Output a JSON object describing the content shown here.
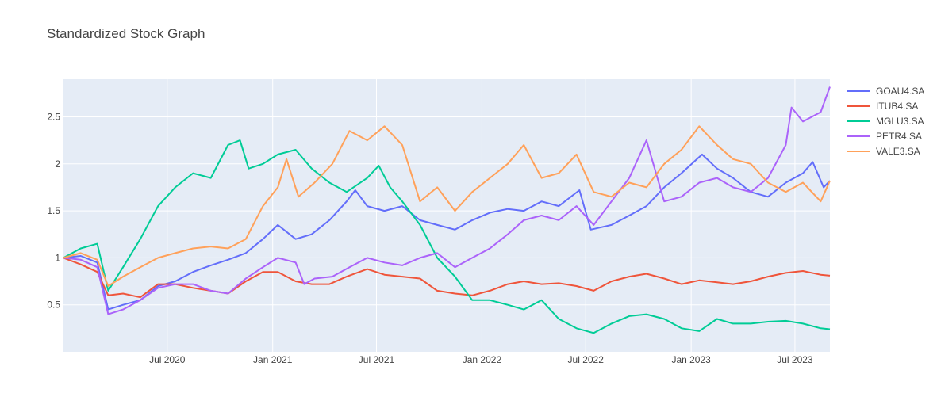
{
  "chart_data": {
    "type": "line",
    "title": "Standardized Stock Graph",
    "xlabel": "",
    "ylabel": "",
    "x_range": [
      "2020-01-02",
      "2023-08-31"
    ],
    "ylim": [
      0.0,
      2.9
    ],
    "x_ticks": [
      {
        "date": "2020-07-01",
        "label": "Jul 2020"
      },
      {
        "date": "2021-01-01",
        "label": "Jan 2021"
      },
      {
        "date": "2021-07-01",
        "label": "Jul 2021"
      },
      {
        "date": "2022-01-01",
        "label": "Jan 2022"
      },
      {
        "date": "2022-07-01",
        "label": "Jul 2022"
      },
      {
        "date": "2023-01-01",
        "label": "Jan 2023"
      },
      {
        "date": "2023-07-01",
        "label": "Jul 2023"
      }
    ],
    "y_ticks": [
      {
        "value": 0.5,
        "label": "0.5"
      },
      {
        "value": 1.0,
        "label": "1"
      },
      {
        "value": 1.5,
        "label": "1.5"
      },
      {
        "value": 2.0,
        "label": "2"
      },
      {
        "value": 2.5,
        "label": "2.5"
      }
    ],
    "grid": true,
    "legend_position": "right",
    "plot_background": "#e5ecf6",
    "series": [
      {
        "name": "GOAU4.SA",
        "color": "#636efa",
        "points": [
          [
            "2020-01-02",
            1.0
          ],
          [
            "2020-02-01",
            1.02
          ],
          [
            "2020-03-01",
            0.95
          ],
          [
            "2020-03-20",
            0.45
          ],
          [
            "2020-04-15",
            0.5
          ],
          [
            "2020-05-15",
            0.55
          ],
          [
            "2020-06-15",
            0.7
          ],
          [
            "2020-07-15",
            0.75
          ],
          [
            "2020-08-15",
            0.85
          ],
          [
            "2020-09-15",
            0.92
          ],
          [
            "2020-10-15",
            0.98
          ],
          [
            "2020-11-15",
            1.05
          ],
          [
            "2020-12-15",
            1.2
          ],
          [
            "2021-01-10",
            1.35
          ],
          [
            "2021-02-10",
            1.2
          ],
          [
            "2021-03-10",
            1.25
          ],
          [
            "2021-04-10",
            1.4
          ],
          [
            "2021-05-10",
            1.6
          ],
          [
            "2021-05-25",
            1.72
          ],
          [
            "2021-06-15",
            1.55
          ],
          [
            "2021-07-15",
            1.5
          ],
          [
            "2021-08-15",
            1.55
          ],
          [
            "2021-09-15",
            1.4
          ],
          [
            "2021-10-15",
            1.35
          ],
          [
            "2021-11-15",
            1.3
          ],
          [
            "2021-12-15",
            1.4
          ],
          [
            "2022-01-15",
            1.48
          ],
          [
            "2022-02-15",
            1.52
          ],
          [
            "2022-03-15",
            1.5
          ],
          [
            "2022-04-15",
            1.6
          ],
          [
            "2022-05-15",
            1.55
          ],
          [
            "2022-06-20",
            1.72
          ],
          [
            "2022-07-10",
            1.3
          ],
          [
            "2022-08-15",
            1.35
          ],
          [
            "2022-09-15",
            1.45
          ],
          [
            "2022-10-15",
            1.55
          ],
          [
            "2022-11-15",
            1.75
          ],
          [
            "2022-12-15",
            1.9
          ],
          [
            "2023-01-20",
            2.1
          ],
          [
            "2023-02-15",
            1.95
          ],
          [
            "2023-03-15",
            1.85
          ],
          [
            "2023-04-15",
            1.7
          ],
          [
            "2023-05-15",
            1.65
          ],
          [
            "2023-06-15",
            1.8
          ],
          [
            "2023-07-15",
            1.9
          ],
          [
            "2023-08-01",
            2.02
          ],
          [
            "2023-08-20",
            1.75
          ],
          [
            "2023-08-31",
            1.82
          ]
        ]
      },
      {
        "name": "ITUB4.SA",
        "color": "#ef553b",
        "points": [
          [
            "2020-01-02",
            1.0
          ],
          [
            "2020-02-01",
            0.93
          ],
          [
            "2020-03-01",
            0.85
          ],
          [
            "2020-03-20",
            0.6
          ],
          [
            "2020-04-15",
            0.62
          ],
          [
            "2020-05-15",
            0.58
          ],
          [
            "2020-06-15",
            0.72
          ],
          [
            "2020-07-15",
            0.72
          ],
          [
            "2020-08-15",
            0.68
          ],
          [
            "2020-09-15",
            0.65
          ],
          [
            "2020-10-15",
            0.62
          ],
          [
            "2020-11-15",
            0.75
          ],
          [
            "2020-12-15",
            0.85
          ],
          [
            "2021-01-10",
            0.85
          ],
          [
            "2021-02-10",
            0.75
          ],
          [
            "2021-03-10",
            0.72
          ],
          [
            "2021-04-10",
            0.72
          ],
          [
            "2021-05-10",
            0.8
          ],
          [
            "2021-06-15",
            0.88
          ],
          [
            "2021-07-15",
            0.82
          ],
          [
            "2021-08-15",
            0.8
          ],
          [
            "2021-09-15",
            0.78
          ],
          [
            "2021-10-15",
            0.65
          ],
          [
            "2021-11-15",
            0.62
          ],
          [
            "2021-12-15",
            0.6
          ],
          [
            "2022-01-15",
            0.65
          ],
          [
            "2022-02-15",
            0.72
          ],
          [
            "2022-03-15",
            0.75
          ],
          [
            "2022-04-15",
            0.72
          ],
          [
            "2022-05-15",
            0.73
          ],
          [
            "2022-06-15",
            0.7
          ],
          [
            "2022-07-15",
            0.65
          ],
          [
            "2022-08-15",
            0.75
          ],
          [
            "2022-09-15",
            0.8
          ],
          [
            "2022-10-15",
            0.83
          ],
          [
            "2022-11-15",
            0.78
          ],
          [
            "2022-12-15",
            0.72
          ],
          [
            "2023-01-15",
            0.76
          ],
          [
            "2023-02-15",
            0.74
          ],
          [
            "2023-03-15",
            0.72
          ],
          [
            "2023-04-15",
            0.75
          ],
          [
            "2023-05-15",
            0.8
          ],
          [
            "2023-06-15",
            0.84
          ],
          [
            "2023-07-15",
            0.86
          ],
          [
            "2023-08-15",
            0.82
          ],
          [
            "2023-08-31",
            0.81
          ]
        ]
      },
      {
        "name": "MGLU3.SA",
        "color": "#00cc96",
        "points": [
          [
            "2020-01-02",
            1.0
          ],
          [
            "2020-02-01",
            1.1
          ],
          [
            "2020-03-01",
            1.15
          ],
          [
            "2020-03-20",
            0.65
          ],
          [
            "2020-04-15",
            0.9
          ],
          [
            "2020-05-15",
            1.2
          ],
          [
            "2020-06-15",
            1.55
          ],
          [
            "2020-07-15",
            1.75
          ],
          [
            "2020-08-15",
            1.9
          ],
          [
            "2020-09-15",
            1.85
          ],
          [
            "2020-10-15",
            2.2
          ],
          [
            "2020-11-05",
            2.25
          ],
          [
            "2020-11-20",
            1.95
          ],
          [
            "2020-12-15",
            2.0
          ],
          [
            "2021-01-10",
            2.1
          ],
          [
            "2021-02-10",
            2.15
          ],
          [
            "2021-03-10",
            1.95
          ],
          [
            "2021-04-10",
            1.8
          ],
          [
            "2021-05-10",
            1.7
          ],
          [
            "2021-06-15",
            1.85
          ],
          [
            "2021-07-05",
            1.98
          ],
          [
            "2021-07-25",
            1.75
          ],
          [
            "2021-08-15",
            1.6
          ],
          [
            "2021-09-15",
            1.35
          ],
          [
            "2021-10-15",
            1.0
          ],
          [
            "2021-11-15",
            0.8
          ],
          [
            "2021-12-15",
            0.55
          ],
          [
            "2022-01-15",
            0.55
          ],
          [
            "2022-02-15",
            0.5
          ],
          [
            "2022-03-15",
            0.45
          ],
          [
            "2022-04-15",
            0.55
          ],
          [
            "2022-05-15",
            0.35
          ],
          [
            "2022-06-15",
            0.25
          ],
          [
            "2022-07-15",
            0.2
          ],
          [
            "2022-08-15",
            0.3
          ],
          [
            "2022-09-15",
            0.38
          ],
          [
            "2022-10-15",
            0.4
          ],
          [
            "2022-11-15",
            0.35
          ],
          [
            "2022-12-15",
            0.25
          ],
          [
            "2023-01-15",
            0.22
          ],
          [
            "2023-02-15",
            0.35
          ],
          [
            "2023-03-15",
            0.3
          ],
          [
            "2023-04-15",
            0.3
          ],
          [
            "2023-05-15",
            0.32
          ],
          [
            "2023-06-15",
            0.33
          ],
          [
            "2023-07-15",
            0.3
          ],
          [
            "2023-08-15",
            0.25
          ],
          [
            "2023-08-31",
            0.24
          ]
        ]
      },
      {
        "name": "PETR4.SA",
        "color": "#ab63fa",
        "points": [
          [
            "2020-01-02",
            1.0
          ],
          [
            "2020-02-01",
            0.98
          ],
          [
            "2020-03-01",
            0.9
          ],
          [
            "2020-03-20",
            0.4
          ],
          [
            "2020-04-15",
            0.45
          ],
          [
            "2020-05-15",
            0.55
          ],
          [
            "2020-06-15",
            0.68
          ],
          [
            "2020-07-15",
            0.72
          ],
          [
            "2020-08-15",
            0.72
          ],
          [
            "2020-09-15",
            0.65
          ],
          [
            "2020-10-15",
            0.62
          ],
          [
            "2020-11-15",
            0.78
          ],
          [
            "2020-12-15",
            0.9
          ],
          [
            "2021-01-10",
            1.0
          ],
          [
            "2021-02-10",
            0.95
          ],
          [
            "2021-02-25",
            0.72
          ],
          [
            "2021-03-15",
            0.78
          ],
          [
            "2021-04-15",
            0.8
          ],
          [
            "2021-05-15",
            0.9
          ],
          [
            "2021-06-15",
            1.0
          ],
          [
            "2021-07-15",
            0.95
          ],
          [
            "2021-08-15",
            0.92
          ],
          [
            "2021-09-15",
            1.0
          ],
          [
            "2021-10-15",
            1.05
          ],
          [
            "2021-11-15",
            0.9
          ],
          [
            "2021-12-15",
            1.0
          ],
          [
            "2022-01-15",
            1.1
          ],
          [
            "2022-02-15",
            1.25
          ],
          [
            "2022-03-15",
            1.4
          ],
          [
            "2022-04-15",
            1.45
          ],
          [
            "2022-05-15",
            1.4
          ],
          [
            "2022-06-15",
            1.55
          ],
          [
            "2022-07-15",
            1.35
          ],
          [
            "2022-08-15",
            1.6
          ],
          [
            "2022-09-15",
            1.85
          ],
          [
            "2022-10-15",
            2.25
          ],
          [
            "2022-11-15",
            1.6
          ],
          [
            "2022-12-15",
            1.65
          ],
          [
            "2023-01-15",
            1.8
          ],
          [
            "2023-02-15",
            1.85
          ],
          [
            "2023-03-15",
            1.75
          ],
          [
            "2023-04-15",
            1.7
          ],
          [
            "2023-05-15",
            1.85
          ],
          [
            "2023-06-15",
            2.2
          ],
          [
            "2023-06-25",
            2.6
          ],
          [
            "2023-07-15",
            2.45
          ],
          [
            "2023-08-15",
            2.55
          ],
          [
            "2023-08-31",
            2.82
          ]
        ]
      },
      {
        "name": "VALE3.SA",
        "color": "#ffa15a",
        "points": [
          [
            "2020-01-02",
            1.0
          ],
          [
            "2020-02-01",
            1.05
          ],
          [
            "2020-03-01",
            0.98
          ],
          [
            "2020-03-20",
            0.7
          ],
          [
            "2020-04-15",
            0.8
          ],
          [
            "2020-05-15",
            0.9
          ],
          [
            "2020-06-15",
            1.0
          ],
          [
            "2020-07-15",
            1.05
          ],
          [
            "2020-08-15",
            1.1
          ],
          [
            "2020-09-15",
            1.12
          ],
          [
            "2020-10-15",
            1.1
          ],
          [
            "2020-11-15",
            1.2
          ],
          [
            "2020-12-15",
            1.55
          ],
          [
            "2021-01-10",
            1.75
          ],
          [
            "2021-01-25",
            2.05
          ],
          [
            "2021-02-15",
            1.65
          ],
          [
            "2021-03-15",
            1.8
          ],
          [
            "2021-04-15",
            2.0
          ],
          [
            "2021-05-15",
            2.35
          ],
          [
            "2021-06-15",
            2.25
          ],
          [
            "2021-07-15",
            2.4
          ],
          [
            "2021-08-15",
            2.2
          ],
          [
            "2021-09-15",
            1.6
          ],
          [
            "2021-10-15",
            1.75
          ],
          [
            "2021-11-15",
            1.5
          ],
          [
            "2021-12-15",
            1.7
          ],
          [
            "2022-01-15",
            1.85
          ],
          [
            "2022-02-15",
            2.0
          ],
          [
            "2022-03-15",
            2.2
          ],
          [
            "2022-04-15",
            1.85
          ],
          [
            "2022-05-15",
            1.9
          ],
          [
            "2022-06-15",
            2.1
          ],
          [
            "2022-07-15",
            1.7
          ],
          [
            "2022-08-15",
            1.65
          ],
          [
            "2022-09-15",
            1.8
          ],
          [
            "2022-10-15",
            1.75
          ],
          [
            "2022-11-15",
            2.0
          ],
          [
            "2022-12-15",
            2.15
          ],
          [
            "2023-01-15",
            2.4
          ],
          [
            "2023-02-15",
            2.2
          ],
          [
            "2023-03-15",
            2.05
          ],
          [
            "2023-04-15",
            2.0
          ],
          [
            "2023-05-15",
            1.8
          ],
          [
            "2023-06-15",
            1.7
          ],
          [
            "2023-07-15",
            1.8
          ],
          [
            "2023-08-15",
            1.6
          ],
          [
            "2023-08-31",
            1.82
          ]
        ]
      }
    ]
  }
}
